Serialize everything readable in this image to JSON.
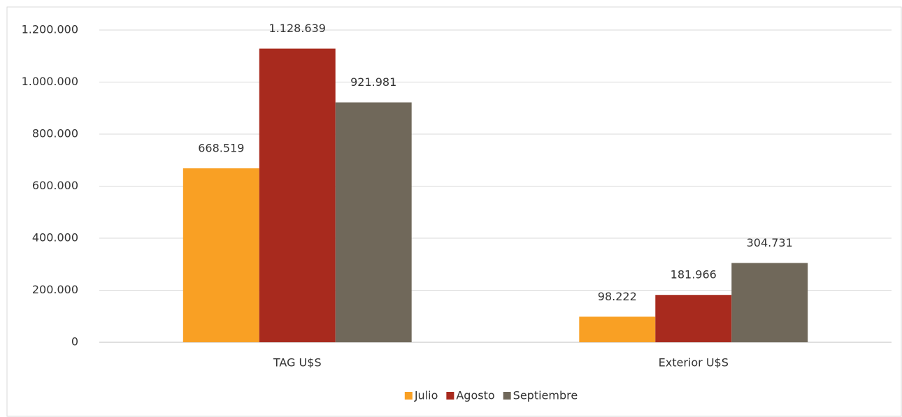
{
  "chart_data": {
    "type": "bar",
    "categories": [
      "TAG U$S",
      "Exterior U$S"
    ],
    "series": [
      {
        "name": "Julio",
        "color": "#f9a024",
        "values": [
          668519,
          98222
        ],
        "value_labels": [
          "668.519",
          "98.222"
        ]
      },
      {
        "name": "Agosto",
        "color": "#a82a1e",
        "values": [
          1128639,
          181966
        ],
        "value_labels": [
          "1.128.639",
          "181.966"
        ]
      },
      {
        "name": "Septiembre",
        "color": "#70685a",
        "values": [
          921981,
          304731
        ],
        "value_labels": [
          "921.981",
          "304.731"
        ]
      }
    ],
    "ylim": [
      0,
      1200000
    ],
    "yticks": [
      0,
      {
        "value": 200000,
        "label": "200.000"
      },
      {
        "value": 400000,
        "label": "400.000"
      },
      {
        "value": 600000,
        "label": "600.000"
      },
      {
        "value": 800000,
        "label": "800.000"
      },
      {
        "value": 1000000,
        "label": "1.000.000"
      },
      {
        "value": 1200000,
        "label": "1.200.000"
      }
    ],
    "grid": true,
    "legend": "bottom"
  }
}
